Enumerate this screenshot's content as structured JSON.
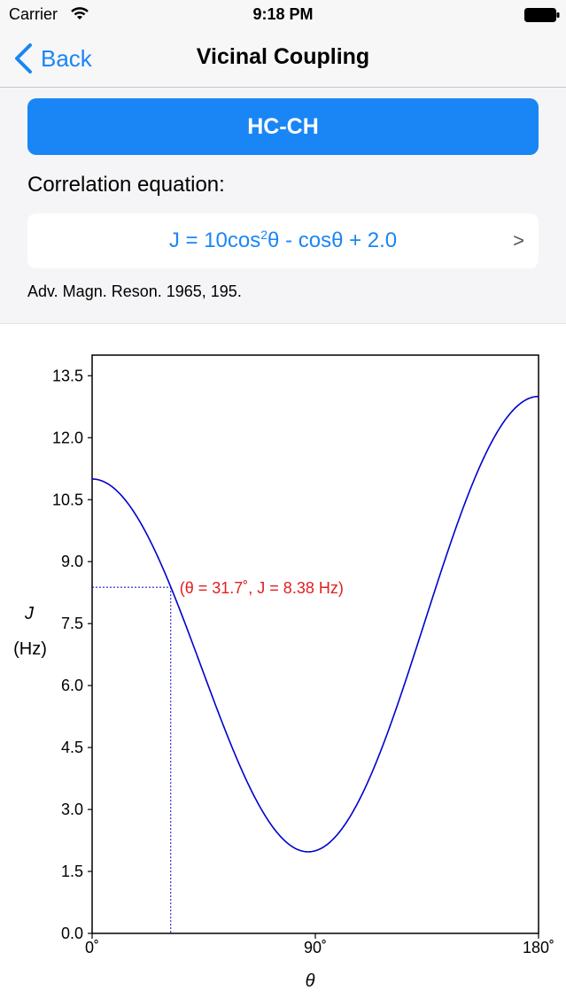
{
  "status": {
    "carrier": "Carrier",
    "time": "9:18 PM"
  },
  "nav": {
    "back_label": "Back",
    "title": "Vicinal Coupling"
  },
  "type_button": {
    "label": "HC-CH"
  },
  "correlation": {
    "label": "Correlation equation:",
    "equation": {
      "lhs": "J = 10cos",
      "exp": "2",
      "rhs": "θ - cosθ + 2.0"
    },
    "disclosure": ">",
    "reference": "Adv. Magn. Reson. 1965, 195."
  },
  "colors": {
    "accent": "#1a86f5",
    "curve": "#0000cc",
    "annotation": "#e02020"
  },
  "icons": [
    "wifi-icon",
    "battery-icon",
    "chevron-left-icon",
    "disclosure-icon"
  ],
  "chart_data": {
    "type": "line",
    "xlabel": "θ",
    "ylabel": [
      "J",
      "(Hz)"
    ],
    "xlim": [
      0,
      180
    ],
    "ylim": [
      0,
      14
    ],
    "x_ticks": [
      "0˚",
      "90˚",
      "180˚"
    ],
    "x_tick_values": [
      0,
      90,
      180
    ],
    "y_ticks": [
      "0.0",
      "1.5",
      "3.0",
      "4.5",
      "6.0",
      "7.5",
      "9.0",
      "10.5",
      "12.0",
      "13.5"
    ],
    "y_tick_values": [
      0,
      1.5,
      3,
      4.5,
      6,
      7.5,
      9,
      10.5,
      12,
      13.5
    ],
    "series": [
      {
        "function": "10*cos(θ)^2 - cos(θ) + 2.0",
        "x_range": [
          0,
          180
        ],
        "color": "#0000cc"
      }
    ],
    "marker": {
      "x": 31.7,
      "y": 8.38,
      "label": "(θ = 31.7˚, J = 8.38 Hz)"
    }
  }
}
